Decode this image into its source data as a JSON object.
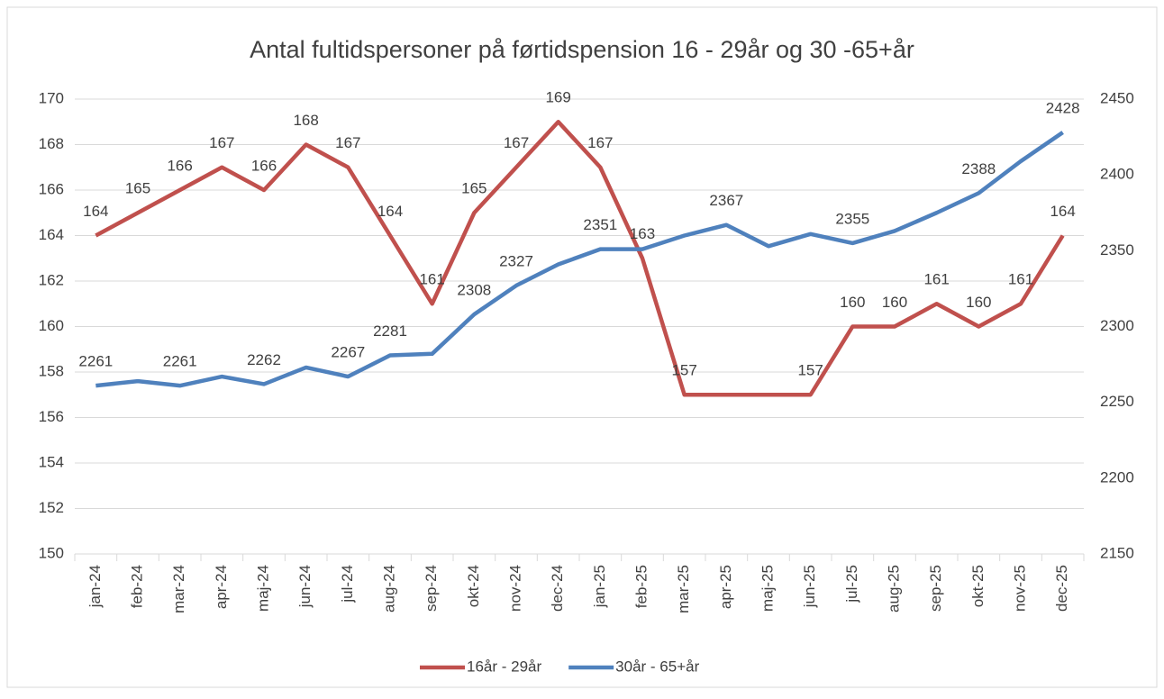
{
  "chart_data": {
    "type": "line",
    "title": "Antal fultidspersoner på førtidspension 16 - 29år og 30 -65+år",
    "categories": [
      "jan-24",
      "feb-24",
      "mar-24",
      "apr-24",
      "maj-24",
      "jun-24",
      "jul-24",
      "aug-24",
      "sep-24",
      "okt-24",
      "nov-24",
      "dec-24",
      "jan-25",
      "feb-25",
      "mar-25",
      "apr-25",
      "maj-25",
      "jun-25",
      "jul-25",
      "aug-25",
      "sep-25",
      "okt-25",
      "nov-25",
      "dec-25"
    ],
    "series": [
      {
        "name": "16år - 29år",
        "color": "#c0504d",
        "values": [
          164,
          165,
          166,
          167,
          166,
          168,
          167,
          164,
          161,
          165,
          167,
          169,
          167,
          163,
          157,
          157,
          157,
          157,
          160,
          160,
          161,
          160,
          161,
          164
        ],
        "value_labels": [
          "164",
          "165",
          "166",
          "167",
          "166",
          "168",
          "167",
          "164",
          "161",
          "165",
          "167",
          "169",
          "167",
          "163",
          "157",
          null,
          null,
          "157",
          "160",
          "160",
          "161",
          "160",
          "161",
          "164"
        ]
      },
      {
        "name": "30år - 65+år",
        "color": "#4f81bd",
        "axis": "y2",
        "values": [
          2261,
          2264,
          2261,
          2267,
          2262,
          2273,
          2267,
          2281,
          2282,
          2308,
          2327,
          2341,
          2351,
          2351,
          2360,
          2367,
          2353,
          2361,
          2355,
          2363,
          2375,
          2388,
          2409,
          2428
        ],
        "value_labels": [
          "2261",
          null,
          "2261",
          null,
          "2262",
          null,
          "2267",
          "2281",
          null,
          "2308",
          "2327",
          null,
          "2351",
          null,
          null,
          "2367",
          null,
          null,
          "2355",
          null,
          null,
          "2388",
          null,
          "2428"
        ]
      }
    ],
    "ylim": [
      150,
      170
    ],
    "yticks": [
      150,
      152,
      154,
      156,
      158,
      160,
      162,
      164,
      166,
      168,
      170
    ],
    "y2lim": [
      2150,
      2450
    ],
    "y2ticks": [
      2150,
      2200,
      2250,
      2300,
      2350,
      2400,
      2450
    ],
    "grid": true,
    "legend": "bottom"
  }
}
